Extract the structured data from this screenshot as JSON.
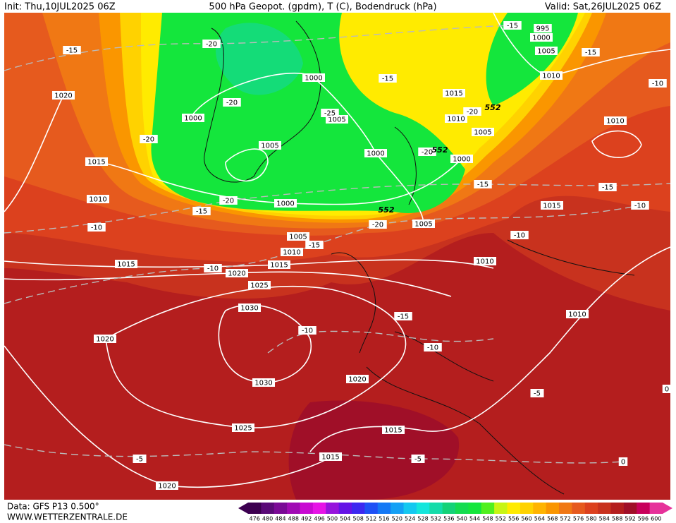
{
  "header": {
    "init": "Init: Thu,10JUL2025 06Z",
    "title": "500 hPa Geopot. (gpdm), T (C), Bodendruck (hPa)",
    "valid": "Valid: Sat,26JUL2025 06Z"
  },
  "footer": {
    "source": "Data: GFS P13 0.500°",
    "site": "WWW.WETTERZENTRALE.DE"
  },
  "legend": {
    "levels": [
      476,
      480,
      484,
      488,
      492,
      496,
      500,
      504,
      508,
      512,
      516,
      520,
      524,
      528,
      532,
      536,
      540,
      544,
      548,
      552,
      556,
      560,
      564,
      568,
      572,
      576,
      580,
      584,
      588,
      592,
      596,
      600
    ],
    "colors": [
      "#3c0050",
      "#5a0a78",
      "#7a0a96",
      "#a00ab4",
      "#c80ad2",
      "#e614e6",
      "#9614dc",
      "#6414e6",
      "#3c28f0",
      "#1e50f5",
      "#1478f5",
      "#14a0f5",
      "#14c8f0",
      "#14e6dc",
      "#14dcaa",
      "#14d278",
      "#14dc50",
      "#14e63c",
      "#50f01e",
      "#c8f514",
      "#ffeb00",
      "#ffd200",
      "#ffb400",
      "#fa9600",
      "#f07814",
      "#e65a1e",
      "#dc411e",
      "#c8321e",
      "#b41e1e",
      "#a00f28",
      "#c8005a",
      "#e6329a"
    ]
  },
  "pressure_labels": [
    1020,
    1015,
    1010,
    1000,
    1005,
    1000,
    1005,
    1000,
    1000,
    995,
    1000,
    1005,
    1010,
    1015,
    1010,
    1005,
    1000,
    1010,
    1015,
    1005,
    1005,
    1010,
    1015,
    1015,
    1020,
    1025,
    1030,
    1020,
    1030,
    1020,
    1025,
    1015,
    1015,
    1020,
    1010,
    1010
  ],
  "temperature_labels": [
    -15,
    -20,
    -15,
    -15,
    -10,
    -20,
    -25,
    -20,
    -20,
    -20,
    -15,
    -15,
    -20,
    -15,
    -10,
    -10,
    -20,
    -10,
    -15,
    -10,
    -15,
    -10,
    -10,
    -5,
    0,
    -5,
    -5,
    0,
    -15
  ],
  "geopotential_labels": [
    552,
    552,
    552
  ]
}
